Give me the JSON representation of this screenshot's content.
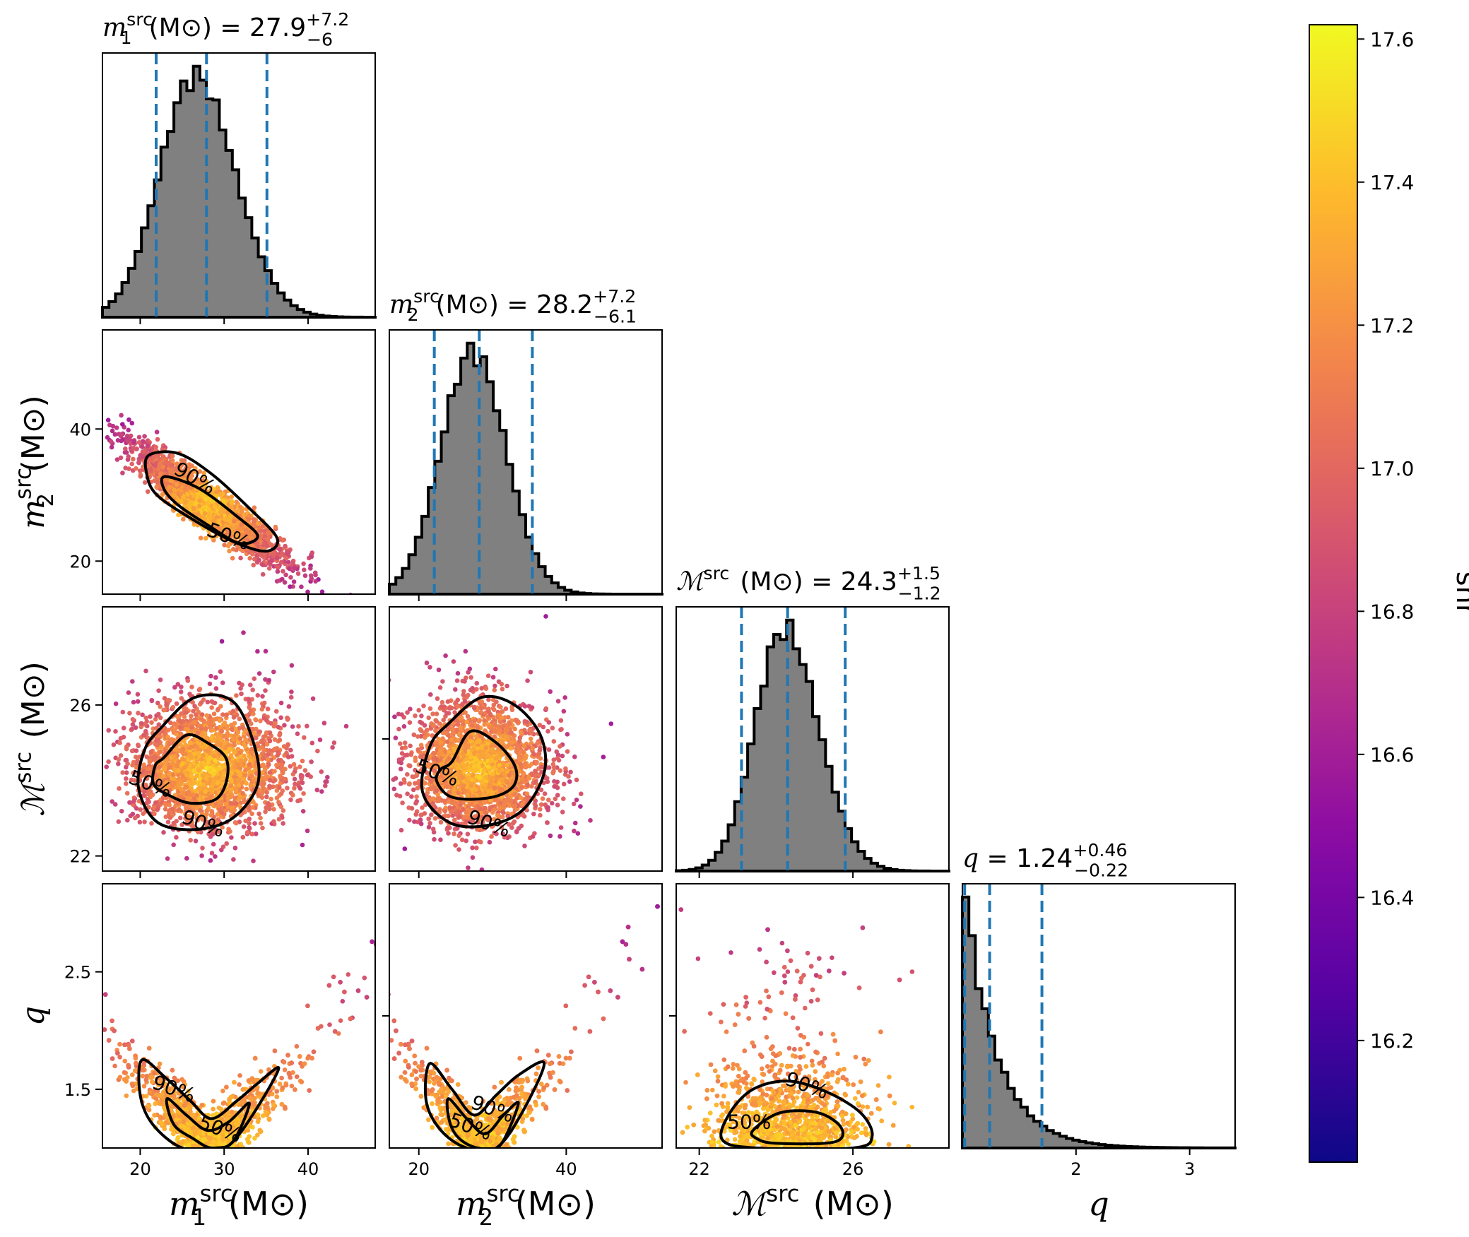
{
  "figure": {
    "colorbar": {
      "label": "snr",
      "min": 16.03,
      "max": 17.62,
      "ticks": [
        16.2,
        16.4,
        16.6,
        16.8,
        17.0,
        17.2,
        17.4,
        17.6
      ],
      "tick_labels": [
        "16.2",
        "16.4",
        "16.6",
        "16.8",
        "17.0",
        "17.2",
        "17.4",
        "17.6"
      ],
      "colormap": "plasma"
    },
    "contour_labels": [
      "90%",
      "50%"
    ]
  },
  "chart_data": [
    {
      "type": "histogram",
      "parameter": "m1",
      "title": {
        "sym": "m",
        "sub": "1",
        "sup": "src",
        "unit": "(M⊙)",
        "value": "= 27.9",
        "plus": "+7.2",
        "minus": "−6"
      },
      "x_range": [
        15.5,
        48
      ],
      "x_ticks": [
        20,
        30,
        40
      ],
      "quantiles": [
        21.9,
        27.9,
        35.1
      ],
      "median": 27.9,
      "peak": 26.5,
      "stdev_left": 4.2,
      "stdev_right": 4.8,
      "line_color": "#1f77b4",
      "fill_color": "#808080"
    },
    {
      "type": "histogram",
      "parameter": "m2",
      "title": {
        "sym": "m",
        "sub": "2",
        "sup": "src",
        "unit": "(M⊙)",
        "value": "= 28.2",
        "plus": "+7.2",
        "minus": "−6.1"
      },
      "x_range": [
        16,
        53
      ],
      "x_ticks": [
        20,
        40
      ],
      "quantiles": [
        22.1,
        28.2,
        35.4
      ],
      "median": 28.2,
      "peak": 27.3,
      "stdev_left": 4.3,
      "stdev_right": 4.5,
      "line_color": "#1f77b4",
      "fill_color": "#808080"
    },
    {
      "type": "histogram",
      "parameter": "mchirp",
      "title": {
        "sym": "ℳ",
        "sub": "",
        "sup": "src",
        "unit": "(M⊙)",
        "value": "= 24.3",
        "plus": "+1.5",
        "minus": "−1.2"
      },
      "x_range": [
        21.4,
        28.5
      ],
      "x_ticks": [
        22,
        26
      ],
      "quantiles": [
        23.1,
        24.3,
        25.8
      ],
      "median": 24.3,
      "peak": 24.2,
      "stdev_left": 0.75,
      "stdev_right": 0.9,
      "line_color": "#1f77b4",
      "fill_color": "#808080"
    },
    {
      "type": "histogram",
      "parameter": "q",
      "title": {
        "sym": "q",
        "sub": "",
        "sup": "",
        "unit": "",
        "value": "= 1.24",
        "plus": "+0.46",
        "minus": "−0.22"
      },
      "x_range": [
        1.0,
        3.4
      ],
      "x_ticks": [
        2,
        3
      ],
      "quantiles": [
        1.02,
        1.24,
        1.7
      ],
      "median": 1.24,
      "peak": 1.0,
      "decay": 0.28,
      "line_color": "#1f77b4",
      "fill_color": "#808080"
    },
    {
      "type": "scatter",
      "x": "m1",
      "y": "m2",
      "x_range": [
        15.5,
        48
      ],
      "y_range": [
        15,
        55
      ],
      "y_ticks": [
        20,
        40
      ],
      "ylabel": {
        "sym": "m",
        "sub": "2",
        "sup": "src",
        "unit": "(M⊙)"
      },
      "contours": [
        {
          "label": "90%",
          "points": [
            [
              21,
              36
            ],
            [
              24.5,
              36.3
            ],
            [
              28.5,
              33.2
            ],
            [
              33,
              28
            ],
            [
              36.3,
              23.5
            ],
            [
              35,
              21.5
            ],
            [
              31,
              23
            ],
            [
              26,
              26.5
            ],
            [
              22,
              30
            ],
            [
              20.8,
              33
            ]
          ],
          "label_at": [
            26.5,
            32.5
          ]
        },
        {
          "label": "50%",
          "points": [
            [
              23,
              32.8
            ],
            [
              27,
              31
            ],
            [
              31.5,
              26.8
            ],
            [
              34,
              23.8
            ],
            [
              31.8,
              22.7
            ],
            [
              28,
              25.5
            ],
            [
              24.5,
              28.5
            ],
            [
              22.8,
              31
            ]
          ],
          "label_at": [
            30.5,
            23.7
          ]
        }
      ]
    },
    {
      "type": "scatter",
      "x": "m1",
      "y": "mchirp",
      "x_range": [
        15.5,
        48
      ],
      "y_range": [
        21.6,
        28.6
      ],
      "y_ticks": [
        22,
        26
      ],
      "ylabel": {
        "sym": "ℳ",
        "sub": "",
        "sup": "src",
        "unit": "(M⊙)"
      },
      "contours": [
        {
          "label": "90%",
          "points": [
            [
              22.5,
              25.4
            ],
            [
              26.5,
              26.2
            ],
            [
              31,
              26.1
            ],
            [
              33.5,
              25
            ],
            [
              34,
              23.9
            ],
            [
              31,
              23
            ],
            [
              26.5,
              22.7
            ],
            [
              22,
              22.9
            ],
            [
              19.8,
              23.8
            ],
            [
              20.5,
              24.8
            ]
          ],
          "label_at": [
            27.5,
            22.85
          ]
        },
        {
          "label": "50%",
          "points": [
            [
              22.8,
              24.6
            ],
            [
              25.5,
              25.2
            ],
            [
              28,
              25
            ],
            [
              30.2,
              24.6
            ],
            [
              30.3,
              24
            ],
            [
              29,
              23.5
            ],
            [
              26,
              23.4
            ],
            [
              23.5,
              23.6
            ],
            [
              21.6,
              23.9
            ],
            [
              21.8,
              24.4
            ]
          ],
          "label_at": [
            21.2,
            23.9
          ]
        }
      ]
    },
    {
      "type": "scatter",
      "x": "m2",
      "y": "mchirp",
      "x_range": [
        16,
        53
      ],
      "y_range": [
        21.6,
        28.6
      ],
      "y_ticks": [],
      "contours": [
        {
          "label": "90%",
          "points": [
            [
              24,
              25.5
            ],
            [
              28.5,
              26.2
            ],
            [
              33,
              26
            ],
            [
              36.5,
              25.2
            ],
            [
              37,
              24.2
            ],
            [
              34,
              23.2
            ],
            [
              29,
              22.8
            ],
            [
              24,
              22.9
            ],
            [
              20.5,
              23.7
            ],
            [
              21.5,
              24.9
            ]
          ],
          "label_at": [
            29.5,
            22.85
          ]
        },
        {
          "label": "50%",
          "points": [
            [
              24.5,
              24.5
            ],
            [
              27,
              25.3
            ],
            [
              30.5,
              25
            ],
            [
              33,
              24.4
            ],
            [
              33,
              23.9
            ],
            [
              30.8,
              23.6
            ],
            [
              27,
              23.5
            ],
            [
              24,
              23.6
            ],
            [
              22.4,
              24
            ],
            [
              23,
              24.3
            ]
          ],
          "label_at": [
            22.5,
            24.2
          ]
        }
      ]
    },
    {
      "type": "scatter",
      "x": "m1",
      "y": "q",
      "x_range": [
        15.5,
        48
      ],
      "y_range": [
        1.0,
        3.25
      ],
      "y_ticks": [
        1.5,
        2.5
      ],
      "ylabel": {
        "sym": "q",
        "sub": "",
        "sup": "",
        "unit": ""
      },
      "contours": [
        {
          "label": "90%",
          "points": [
            [
              20.2,
              1.75
            ],
            [
              23,
              1.6
            ],
            [
              26,
              1.4
            ],
            [
              28.5,
              1.25
            ],
            [
              31.5,
              1.4
            ],
            [
              34,
              1.55
            ],
            [
              36.5,
              1.68
            ],
            [
              34,
              1.35
            ],
            [
              31,
              1.05
            ],
            [
              29,
              1.0
            ],
            [
              25,
              1.0
            ],
            [
              21.5,
              1.2
            ],
            [
              20,
              1.45
            ]
          ],
          "label_at": [
            24.0,
            1.5
          ]
        },
        {
          "label": "50%",
          "points": [
            [
              23.2,
              1.42
            ],
            [
              25.5,
              1.28
            ],
            [
              28,
              1.15
            ],
            [
              30.5,
              1.22
            ],
            [
              33,
              1.38
            ],
            [
              31,
              1.05
            ],
            [
              28.5,
              1.0
            ],
            [
              26.3,
              1.08
            ],
            [
              24,
              1.2
            ]
          ],
          "label_at": [
            29.5,
            1.16
          ]
        }
      ]
    },
    {
      "type": "scatter",
      "x": "m2",
      "y": "q",
      "x_range": [
        16,
        53
      ],
      "y_range": [
        1.0,
        3.25
      ],
      "y_ticks": [],
      "contours": [
        {
          "label": "90%",
          "points": [
            [
              21.5,
              1.72
            ],
            [
              24.5,
              1.5
            ],
            [
              27.5,
              1.28
            ],
            [
              30.5,
              1.45
            ],
            [
              33.5,
              1.62
            ],
            [
              37,
              1.72
            ],
            [
              34,
              1.3
            ],
            [
              30.5,
              1.0
            ],
            [
              26.5,
              1.0
            ],
            [
              23,
              1.15
            ],
            [
              21,
              1.4
            ]
          ],
          "label_at": [
            30.0,
            1.33
          ]
        },
        {
          "label": "50%",
          "points": [
            [
              24,
              1.42
            ],
            [
              26.5,
              1.25
            ],
            [
              29,
              1.12
            ],
            [
              31.5,
              1.28
            ],
            [
              33.5,
              1.38
            ],
            [
              31,
              1.02
            ],
            [
              28,
              1.0
            ],
            [
              25.5,
              1.08
            ],
            [
              24.2,
              1.22
            ]
          ],
          "label_at": [
            27.0,
            1.18
          ]
        }
      ]
    },
    {
      "type": "scatter",
      "x": "mchirp",
      "y": "q",
      "x_range": [
        21.4,
        28.5
      ],
      "y_range": [
        1.0,
        3.25
      ],
      "y_ticks": [],
      "contours": [
        {
          "label": "90%",
          "points": [
            [
              22.8,
              1.3
            ],
            [
              23.4,
              1.5
            ],
            [
              24.3,
              1.57
            ],
            [
              25.3,
              1.48
            ],
            [
              26.2,
              1.3
            ],
            [
              26.5,
              1.1
            ],
            [
              26,
              1.0
            ],
            [
              23.5,
              1.0
            ],
            [
              22.6,
              1.07
            ]
          ],
          "label_at": [
            24.8,
            1.53
          ]
        },
        {
          "label": "50%",
          "points": [
            [
              23.4,
              1.15
            ],
            [
              24.1,
              1.3
            ],
            [
              25.1,
              1.3
            ],
            [
              25.7,
              1.17
            ],
            [
              25.5,
              1.05
            ],
            [
              24,
              1.04
            ],
            [
              23.5,
              1.08
            ]
          ],
          "label_at": [
            23.3,
            1.22
          ]
        }
      ]
    }
  ],
  "axis_labels": {
    "x": [
      {
        "sym": "m",
        "sub": "1",
        "sup": "src",
        "unit": "(M⊙)"
      },
      {
        "sym": "m",
        "sub": "2",
        "sup": "src",
        "unit": "(M⊙)"
      },
      {
        "sym": "ℳ",
        "sub": "",
        "sup": "src",
        "unit": "(M⊙)"
      },
      {
        "sym": "q",
        "sub": "",
        "sup": "",
        "unit": ""
      }
    ]
  }
}
